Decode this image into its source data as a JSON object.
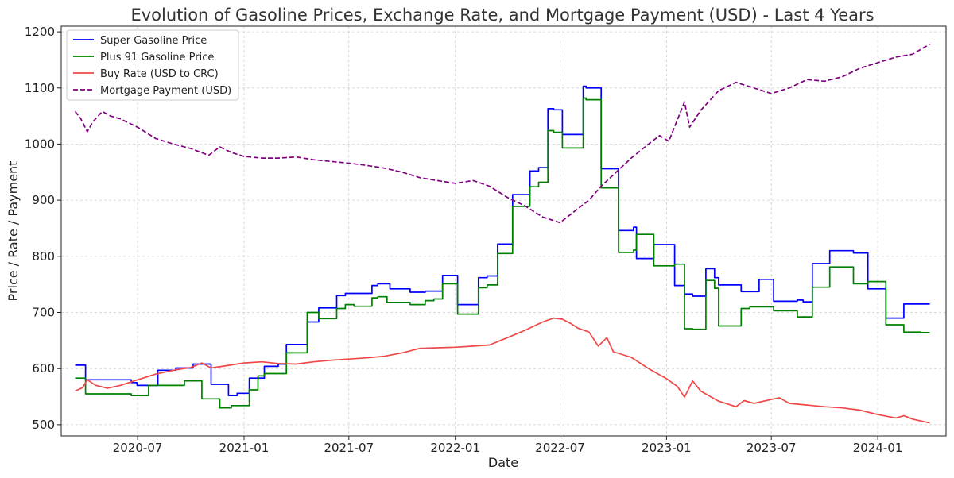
{
  "chart_data": {
    "type": "line",
    "title": "Evolution of Gasoline Prices, Exchange Rate, and Mortgage Payment (USD) - Last 4 Years",
    "xlabel": "Date",
    "ylabel": "Price / Rate / Payment",
    "ylim": [
      480,
      1210
    ],
    "xlim": [
      "2020-02-20",
      "2024-04-28"
    ],
    "grid": true,
    "legend_position": "top-left",
    "x_ticks": [
      "2020-07",
      "2021-01",
      "2021-07",
      "2022-01",
      "2022-07",
      "2023-01",
      "2023-07",
      "2024-01"
    ],
    "y_ticks": [
      500,
      600,
      700,
      800,
      900,
      1000,
      1100,
      1200
    ],
    "series": [
      {
        "name": "Super Gasoline Price",
        "color": "#0000ff",
        "style": "step",
        "points": [
          [
            "2020-03-15",
            606
          ],
          [
            "2020-04-02",
            580
          ],
          [
            "2020-06-20",
            575
          ],
          [
            "2020-06-30",
            570
          ],
          [
            "2020-08-05",
            597
          ],
          [
            "2020-09-05",
            601
          ],
          [
            "2020-10-05",
            608
          ],
          [
            "2020-11-05",
            572
          ],
          [
            "2020-12-05",
            552
          ],
          [
            "2020-12-20",
            556
          ],
          [
            "2021-01-10",
            583
          ],
          [
            "2021-02-05",
            604
          ],
          [
            "2021-03-01",
            608
          ],
          [
            "2021-03-15",
            643
          ],
          [
            "2021-04-20",
            683
          ],
          [
            "2021-05-10",
            708
          ],
          [
            "2021-06-10",
            730
          ],
          [
            "2021-06-25",
            734
          ],
          [
            "2021-08-10",
            748
          ],
          [
            "2021-08-20",
            751
          ],
          [
            "2021-09-10",
            742
          ],
          [
            "2021-10-15",
            736
          ],
          [
            "2021-11-10",
            738
          ],
          [
            "2021-12-10",
            766
          ],
          [
            "2022-01-05",
            714
          ],
          [
            "2022-02-10",
            762
          ],
          [
            "2022-02-25",
            765
          ],
          [
            "2022-03-15",
            822
          ],
          [
            "2022-04-10",
            910
          ],
          [
            "2022-05-10",
            952
          ],
          [
            "2022-05-25",
            958
          ],
          [
            "2022-06-10",
            1063
          ],
          [
            "2022-06-20",
            1061
          ],
          [
            "2022-07-05",
            1017
          ],
          [
            "2022-08-10",
            1103
          ],
          [
            "2022-08-15",
            1100
          ],
          [
            "2022-09-10",
            956
          ],
          [
            "2022-10-10",
            846
          ],
          [
            "2022-11-05",
            852
          ],
          [
            "2022-11-10",
            796
          ],
          [
            "2022-12-10",
            821
          ],
          [
            "2023-01-15",
            748
          ],
          [
            "2023-02-01",
            733
          ],
          [
            "2023-02-15",
            729
          ],
          [
            "2023-03-10",
            778
          ],
          [
            "2023-03-25",
            762
          ],
          [
            "2023-04-01",
            749
          ],
          [
            "2023-05-10",
            737
          ],
          [
            "2023-06-10",
            759
          ],
          [
            "2023-07-05",
            720
          ],
          [
            "2023-08-15",
            722
          ],
          [
            "2023-08-25",
            719
          ],
          [
            "2023-09-10",
            787
          ],
          [
            "2023-10-10",
            810
          ],
          [
            "2023-11-20",
            806
          ],
          [
            "2023-12-15",
            742
          ],
          [
            "2024-01-15",
            690
          ],
          [
            "2024-02-15",
            715
          ],
          [
            "2024-03-15",
            715
          ],
          [
            "2024-03-31",
            715
          ]
        ]
      },
      {
        "name": "Plus 91 Gasoline Price",
        "color": "#008000",
        "style": "step",
        "points": [
          [
            "2020-03-15",
            583
          ],
          [
            "2020-04-02",
            555
          ],
          [
            "2020-06-20",
            552
          ],
          [
            "2020-07-20",
            570
          ],
          [
            "2020-09-20",
            578
          ],
          [
            "2020-10-20",
            546
          ],
          [
            "2020-11-20",
            530
          ],
          [
            "2020-12-10",
            534
          ],
          [
            "2021-01-10",
            562
          ],
          [
            "2021-01-25",
            587
          ],
          [
            "2021-02-05",
            591
          ],
          [
            "2021-03-15",
            628
          ],
          [
            "2021-04-20",
            700
          ],
          [
            "2021-05-10",
            689
          ],
          [
            "2021-06-10",
            707
          ],
          [
            "2021-06-25",
            714
          ],
          [
            "2021-07-10",
            711
          ],
          [
            "2021-08-10",
            726
          ],
          [
            "2021-08-20",
            728
          ],
          [
            "2021-09-05",
            718
          ],
          [
            "2021-10-15",
            714
          ],
          [
            "2021-11-10",
            721
          ],
          [
            "2021-11-25",
            724
          ],
          [
            "2021-12-10",
            751
          ],
          [
            "2022-01-05",
            697
          ],
          [
            "2022-02-10",
            744
          ],
          [
            "2022-02-25",
            749
          ],
          [
            "2022-03-15",
            805
          ],
          [
            "2022-04-10",
            889
          ],
          [
            "2022-05-10",
            924
          ],
          [
            "2022-05-25",
            932
          ],
          [
            "2022-06-10",
            1024
          ],
          [
            "2022-06-20",
            1021
          ],
          [
            "2022-07-05",
            993
          ],
          [
            "2022-08-10",
            1082
          ],
          [
            "2022-08-15",
            1079
          ],
          [
            "2022-09-10",
            922
          ],
          [
            "2022-10-10",
            807
          ],
          [
            "2022-11-05",
            811
          ],
          [
            "2022-11-10",
            839
          ],
          [
            "2022-12-10",
            783
          ],
          [
            "2023-01-15",
            786
          ],
          [
            "2023-02-01",
            671
          ],
          [
            "2023-02-15",
            670
          ],
          [
            "2023-03-10",
            757
          ],
          [
            "2023-03-25",
            743
          ],
          [
            "2023-04-01",
            676
          ],
          [
            "2023-05-10",
            707
          ],
          [
            "2023-05-25",
            710
          ],
          [
            "2023-07-05",
            703
          ],
          [
            "2023-08-15",
            692
          ],
          [
            "2023-09-10",
            745
          ],
          [
            "2023-10-10",
            781
          ],
          [
            "2023-11-20",
            751
          ],
          [
            "2023-12-15",
            755
          ],
          [
            "2024-01-15",
            678
          ],
          [
            "2024-02-15",
            665
          ],
          [
            "2024-03-15",
            664
          ],
          [
            "2024-03-31",
            664
          ]
        ]
      },
      {
        "name": "Buy Rate (USD to CRC)",
        "color": "#f04848",
        "style": "line",
        "points": [
          [
            "2020-03-15",
            560
          ],
          [
            "2020-03-28",
            566
          ],
          [
            "2020-04-05",
            580
          ],
          [
            "2020-04-20",
            570
          ],
          [
            "2020-05-10",
            565
          ],
          [
            "2020-06-01",
            570
          ],
          [
            "2020-07-01",
            580
          ],
          [
            "2020-08-01",
            590
          ],
          [
            "2020-09-01",
            597
          ],
          [
            "2020-10-01",
            602
          ],
          [
            "2020-10-20",
            610
          ],
          [
            "2020-11-05",
            601
          ],
          [
            "2020-12-01",
            605
          ],
          [
            "2021-01-01",
            610
          ],
          [
            "2021-02-01",
            612
          ],
          [
            "2021-03-01",
            609
          ],
          [
            "2021-04-01",
            608
          ],
          [
            "2021-05-01",
            612
          ],
          [
            "2021-06-01",
            615
          ],
          [
            "2021-07-01",
            617
          ],
          [
            "2021-08-01",
            619
          ],
          [
            "2021-09-01",
            622
          ],
          [
            "2021-10-01",
            628
          ],
          [
            "2021-11-01",
            636
          ],
          [
            "2021-12-01",
            637
          ],
          [
            "2022-01-01",
            638
          ],
          [
            "2022-02-01",
            640
          ],
          [
            "2022-03-01",
            642
          ],
          [
            "2022-04-01",
            655
          ],
          [
            "2022-05-01",
            668
          ],
          [
            "2022-06-01",
            683
          ],
          [
            "2022-06-20",
            690
          ],
          [
            "2022-07-05",
            688
          ],
          [
            "2022-07-20",
            680
          ],
          [
            "2022-08-01",
            672
          ],
          [
            "2022-08-20",
            665
          ],
          [
            "2022-09-05",
            640
          ],
          [
            "2022-09-20",
            655
          ],
          [
            "2022-10-01",
            630
          ],
          [
            "2022-11-01",
            620
          ],
          [
            "2022-12-01",
            600
          ],
          [
            "2023-01-01",
            582
          ],
          [
            "2023-01-20",
            568
          ],
          [
            "2023-02-01",
            549
          ],
          [
            "2023-02-15",
            578
          ],
          [
            "2023-03-01",
            560
          ],
          [
            "2023-04-01",
            542
          ],
          [
            "2023-05-01",
            532
          ],
          [
            "2023-05-15",
            543
          ],
          [
            "2023-06-01",
            538
          ],
          [
            "2023-07-01",
            545
          ],
          [
            "2023-07-15",
            548
          ],
          [
            "2023-08-01",
            538
          ],
          [
            "2023-09-01",
            535
          ],
          [
            "2023-10-01",
            532
          ],
          [
            "2023-11-01",
            530
          ],
          [
            "2023-12-01",
            526
          ],
          [
            "2024-01-01",
            518
          ],
          [
            "2024-02-01",
            512
          ],
          [
            "2024-02-15",
            516
          ],
          [
            "2024-03-01",
            510
          ],
          [
            "2024-03-31",
            503
          ]
        ]
      },
      {
        "name": "Mortgage Payment (USD)",
        "color": "#800080",
        "style": "dashed",
        "points": [
          [
            "2020-03-15",
            1058
          ],
          [
            "2020-03-25",
            1045
          ],
          [
            "2020-04-05",
            1022
          ],
          [
            "2020-04-15",
            1040
          ],
          [
            "2020-05-01",
            1058
          ],
          [
            "2020-05-15",
            1050
          ],
          [
            "2020-06-01",
            1045
          ],
          [
            "2020-07-01",
            1030
          ],
          [
            "2020-08-01",
            1010
          ],
          [
            "2020-09-01",
            1000
          ],
          [
            "2020-10-01",
            992
          ],
          [
            "2020-11-01",
            980
          ],
          [
            "2020-11-20",
            995
          ],
          [
            "2020-12-10",
            985
          ],
          [
            "2021-01-01",
            978
          ],
          [
            "2021-02-01",
            975
          ],
          [
            "2021-03-01",
            975
          ],
          [
            "2021-04-01",
            977
          ],
          [
            "2021-05-01",
            972
          ],
          [
            "2021-06-01",
            969
          ],
          [
            "2021-07-01",
            966
          ],
          [
            "2021-08-01",
            962
          ],
          [
            "2021-09-01",
            957
          ],
          [
            "2021-10-01",
            950
          ],
          [
            "2021-11-01",
            940
          ],
          [
            "2021-12-01",
            935
          ],
          [
            "2022-01-01",
            930
          ],
          [
            "2022-02-01",
            935
          ],
          [
            "2022-03-01",
            925
          ],
          [
            "2022-04-01",
            905
          ],
          [
            "2022-05-01",
            890
          ],
          [
            "2022-06-01",
            870
          ],
          [
            "2022-07-01",
            860
          ],
          [
            "2022-08-01",
            885
          ],
          [
            "2022-08-20",
            900
          ],
          [
            "2022-09-10",
            925
          ],
          [
            "2022-10-01",
            945
          ],
          [
            "2022-11-01",
            975
          ],
          [
            "2022-12-01",
            1000
          ],
          [
            "2022-12-20",
            1015
          ],
          [
            "2023-01-05",
            1005
          ],
          [
            "2023-02-01",
            1075
          ],
          [
            "2023-02-10",
            1030
          ],
          [
            "2023-03-01",
            1060
          ],
          [
            "2023-04-01",
            1095
          ],
          [
            "2023-05-01",
            1110
          ],
          [
            "2023-06-01",
            1100
          ],
          [
            "2023-07-01",
            1090
          ],
          [
            "2023-08-01",
            1100
          ],
          [
            "2023-09-01",
            1115
          ],
          [
            "2023-10-01",
            1112
          ],
          [
            "2023-11-01",
            1120
          ],
          [
            "2023-12-01",
            1135
          ],
          [
            "2024-01-01",
            1145
          ],
          [
            "2024-02-01",
            1155
          ],
          [
            "2024-03-01",
            1160
          ],
          [
            "2024-03-31",
            1178
          ]
        ]
      }
    ]
  }
}
